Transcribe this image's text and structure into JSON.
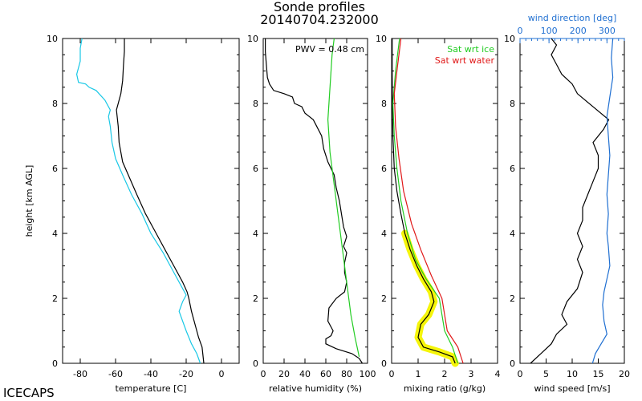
{
  "title": "Sonde profiles",
  "subtitle": "20140704.232000",
  "footer": "ICECAPS",
  "colors": {
    "black": "#000000",
    "cyan": "#19c8e6",
    "green": "#22cc22",
    "red": "#e01818",
    "yellow": "#f5f50a",
    "blue": "#1f6fd1"
  },
  "chart_data": [
    {
      "type": "line",
      "name": "temperature",
      "xlabel": "temperature [C]",
      "ylabel": "height [km AGL]",
      "xlim": [
        -90,
        10
      ],
      "ylim": [
        0,
        10
      ],
      "xticks": [
        -80,
        -60,
        -40,
        -20,
        0
      ],
      "yticks": [
        0,
        2,
        4,
        6,
        8,
        10
      ],
      "series": [
        {
          "name": "temperature",
          "color": "black",
          "points": [
            [
              -10,
              0
            ],
            [
              -11,
              0.5
            ],
            [
              -13,
              0.8
            ],
            [
              -15,
              1.2
            ],
            [
              -17,
              1.6
            ],
            [
              -18.5,
              2.0
            ],
            [
              -19.5,
              2.2
            ],
            [
              -22,
              2.5
            ],
            [
              -27,
              3.0
            ],
            [
              -32,
              3.5
            ],
            [
              -37,
              4.0
            ],
            [
              -43,
              4.6
            ],
            [
              -48,
              5.2
            ],
            [
              -52,
              5.7
            ],
            [
              -56,
              6.2
            ],
            [
              -58,
              6.8
            ],
            [
              -58.5,
              7.3
            ],
            [
              -59.5,
              7.8
            ],
            [
              -58.5,
              8.0
            ],
            [
              -57,
              8.3
            ],
            [
              -56,
              8.7
            ],
            [
              -55.5,
              9.2
            ],
            [
              -55,
              9.6
            ],
            [
              -55,
              10
            ]
          ]
        },
        {
          "name": "dewpoint",
          "color": "cyan",
          "points": [
            [
              -12,
              0
            ],
            [
              -14,
              0.3
            ],
            [
              -17,
              0.6
            ],
            [
              -20,
              1.0
            ],
            [
              -22,
              1.3
            ],
            [
              -24,
              1.6
            ],
            [
              -22,
              1.9
            ],
            [
              -20,
              2.1
            ],
            [
              -23,
              2.4
            ],
            [
              -28,
              2.9
            ],
            [
              -33,
              3.4
            ],
            [
              -40,
              4.0
            ],
            [
              -45,
              4.6
            ],
            [
              -51,
              5.2
            ],
            [
              -56,
              5.8
            ],
            [
              -60,
              6.3
            ],
            [
              -62,
              6.8
            ],
            [
              -63,
              7.3
            ],
            [
              -64,
              7.6
            ],
            [
              -63,
              7.8
            ],
            [
              -66,
              8.1
            ],
            [
              -71,
              8.4
            ],
            [
              -75,
              8.5
            ],
            [
              -77,
              8.6
            ],
            [
              -81,
              8.65
            ],
            [
              -82,
              8.9
            ],
            [
              -80,
              9.3
            ],
            [
              -80,
              9.7
            ],
            [
              -79,
              10
            ]
          ]
        }
      ]
    },
    {
      "type": "line",
      "name": "relative humidity",
      "xlabel": "relative humidity (%)",
      "xlim": [
        0,
        100
      ],
      "ylim": [
        0,
        10
      ],
      "xticks": [
        0,
        20,
        40,
        60,
        80,
        100
      ],
      "yticks": [
        0,
        2,
        4,
        6,
        8,
        10
      ],
      "annotation": "PWV = 0.48 cm",
      "series": [
        {
          "name": "relative humidity",
          "color": "black",
          "points": [
            [
              95,
              0
            ],
            [
              92,
              0.15
            ],
            [
              85,
              0.3
            ],
            [
              70,
              0.45
            ],
            [
              60,
              0.6
            ],
            [
              60,
              0.75
            ],
            [
              65,
              0.85
            ],
            [
              67,
              1.0
            ],
            [
              62,
              1.3
            ],
            [
              63,
              1.7
            ],
            [
              70,
              2.0
            ],
            [
              78,
              2.2
            ],
            [
              80,
              2.5
            ],
            [
              78,
              2.8
            ],
            [
              78,
              3.1
            ],
            [
              80,
              3.4
            ],
            [
              77,
              3.6
            ],
            [
              80,
              3.9
            ],
            [
              77,
              4.2
            ],
            [
              75,
              4.6
            ],
            [
              73,
              5.0
            ],
            [
              70,
              5.4
            ],
            [
              68,
              5.8
            ],
            [
              62,
              6.2
            ],
            [
              58,
              6.6
            ],
            [
              56,
              7.0
            ],
            [
              48,
              7.5
            ],
            [
              40,
              7.7
            ],
            [
              37,
              7.9
            ],
            [
              30,
              8.0
            ],
            [
              28,
              8.2
            ],
            [
              20,
              8.3
            ],
            [
              10,
              8.4
            ],
            [
              6,
              8.6
            ],
            [
              4,
              8.8
            ],
            [
              3,
              9.2
            ],
            [
              2,
              9.6
            ],
            [
              2,
              10
            ]
          ]
        },
        {
          "name": "saturation rh wrt ice",
          "color": "green",
          "points": [
            [
              92,
              0.2
            ],
            [
              88,
              0.8
            ],
            [
              84,
              1.5
            ],
            [
              80,
              2.5
            ],
            [
              76,
              3.5
            ],
            [
              72,
              4.5
            ],
            [
              68,
              5.5
            ],
            [
              64,
              6.5
            ],
            [
              62,
              7.5
            ],
            [
              64,
              8.5
            ],
            [
              66,
              9.5
            ],
            [
              68,
              10
            ]
          ]
        }
      ]
    },
    {
      "type": "line",
      "name": "mixing ratio",
      "xlabel": "mixing ratio (g/kg)",
      "xlim": [
        0,
        4
      ],
      "ylim": [
        0,
        10
      ],
      "xticks": [
        0,
        1,
        2,
        3,
        4
      ],
      "yticks": [
        0,
        2,
        4,
        6,
        8,
        10
      ],
      "legend": [
        "Sat wrt ice",
        "Sat wrt water"
      ],
      "series": [
        {
          "name": "mixing ratio",
          "color": "black",
          "points": [
            [
              2.4,
              0
            ],
            [
              2.3,
              0.2
            ],
            [
              1.8,
              0.35
            ],
            [
              1.2,
              0.5
            ],
            [
              1.0,
              0.8
            ],
            [
              1.1,
              1.2
            ],
            [
              1.4,
              1.5
            ],
            [
              1.6,
              1.9
            ],
            [
              1.5,
              2.2
            ],
            [
              1.2,
              2.6
            ],
            [
              0.95,
              3.0
            ],
            [
              0.7,
              3.5
            ],
            [
              0.5,
              4.0
            ],
            [
              0.35,
              4.6
            ],
            [
              0.2,
              5.3
            ],
            [
              0.1,
              6.0
            ],
            [
              0.05,
              7.0
            ],
            [
              0.03,
              8.0
            ],
            [
              0.02,
              9.0
            ],
            [
              0.02,
              10
            ]
          ]
        },
        {
          "name": "Sat wrt ice",
          "color": "green",
          "points": [
            [
              2.5,
              0
            ],
            [
              2.3,
              0.5
            ],
            [
              2.0,
              1.0
            ],
            [
              1.9,
              1.5
            ],
            [
              1.8,
              2.0
            ],
            [
              1.3,
              2.6
            ],
            [
              0.9,
              3.2
            ],
            [
              0.6,
              4.0
            ],
            [
              0.35,
              5.0
            ],
            [
              0.2,
              6.0
            ],
            [
              0.1,
              7.0
            ],
            [
              0.05,
              8.0
            ],
            [
              0.15,
              9.0
            ],
            [
              0.3,
              10
            ]
          ]
        },
        {
          "name": "Sat wrt water",
          "color": "red",
          "points": [
            [
              2.7,
              0
            ],
            [
              2.5,
              0.5
            ],
            [
              2.1,
              1.0
            ],
            [
              2.0,
              1.5
            ],
            [
              1.9,
              2.0
            ],
            [
              1.5,
              2.7
            ],
            [
              1.1,
              3.5
            ],
            [
              0.75,
              4.3
            ],
            [
              0.45,
              5.3
            ],
            [
              0.28,
              6.3
            ],
            [
              0.15,
              7.3
            ],
            [
              0.1,
              8.3
            ],
            [
              0.2,
              9.0
            ],
            [
              0.35,
              10
            ]
          ]
        }
      ]
    },
    {
      "type": "line",
      "name": "wind",
      "xlabel": "wind speed [m/s]",
      "x2label": "wind direction [deg]",
      "xlim": [
        0,
        20
      ],
      "x2lim": [
        0,
        360
      ],
      "ylim": [
        0,
        10
      ],
      "xticks": [
        0,
        5,
        10,
        15,
        20
      ],
      "x2ticks": [
        0,
        100,
        200,
        300
      ],
      "yticks": [
        0,
        2,
        4,
        6,
        8,
        10
      ],
      "series": [
        {
          "name": "wind speed",
          "color": "black",
          "axis": "bottom",
          "points": [
            [
              2,
              0
            ],
            [
              4,
              0.3
            ],
            [
              6,
              0.6
            ],
            [
              7,
              0.9
            ],
            [
              9,
              1.2
            ],
            [
              8,
              1.5
            ],
            [
              9,
              1.9
            ],
            [
              11,
              2.3
            ],
            [
              12,
              2.8
            ],
            [
              11,
              3.2
            ],
            [
              12,
              3.6
            ],
            [
              11,
              4.0
            ],
            [
              12,
              4.4
            ],
            [
              12,
              4.8
            ],
            [
              13,
              5.2
            ],
            [
              14,
              5.6
            ],
            [
              15,
              6.0
            ],
            [
              15,
              6.4
            ],
            [
              14,
              6.8
            ],
            [
              16,
              7.2
            ],
            [
              17,
              7.5
            ],
            [
              14,
              7.9
            ],
            [
              11,
              8.3
            ],
            [
              10,
              8.6
            ],
            [
              8,
              8.9
            ],
            [
              7,
              9.2
            ],
            [
              6,
              9.5
            ],
            [
              7,
              9.8
            ],
            [
              6,
              10
            ]
          ]
        },
        {
          "name": "wind direction",
          "color": "blue",
          "axis": "top",
          "points": [
            [
              250,
              0
            ],
            [
              260,
              0.3
            ],
            [
              280,
              0.6
            ],
            [
              300,
              0.9
            ],
            [
              290,
              1.3
            ],
            [
              285,
              1.8
            ],
            [
              290,
              2.2
            ],
            [
              300,
              2.6
            ],
            [
              310,
              3.0
            ],
            [
              305,
              3.6
            ],
            [
              300,
              4.0
            ],
            [
              305,
              4.6
            ],
            [
              300,
              5.2
            ],
            [
              305,
              5.8
            ],
            [
              310,
              6.4
            ],
            [
              305,
              7.0
            ],
            [
              300,
              7.6
            ],
            [
              310,
              8.2
            ],
            [
              320,
              8.8
            ],
            [
              315,
              9.4
            ],
            [
              320,
              10
            ]
          ]
        }
      ]
    }
  ]
}
